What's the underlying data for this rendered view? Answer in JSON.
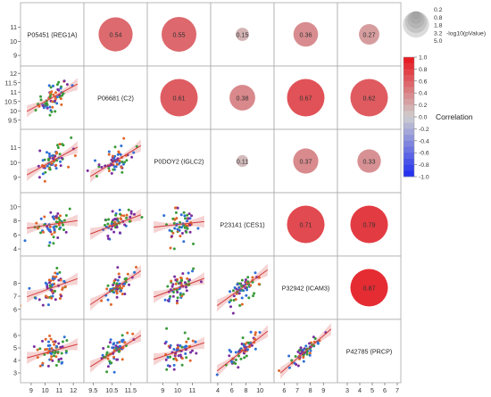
{
  "chart_data": {
    "type": "scatter-matrix",
    "variables": [
      {
        "label": "P05451 (REG1A)",
        "ticks": [
          9,
          10,
          11,
          12
        ],
        "range": [
          8.5,
          12.5
        ]
      },
      {
        "label": "P06681 (C2)",
        "ticks": [
          9.5,
          10.5,
          11.5
        ],
        "range": [
          9.2,
          12.2
        ]
      },
      {
        "label": "P0DOY2 (IGLC2)",
        "ticks": [
          9,
          10,
          11
        ],
        "range": [
          8.2,
          12
        ]
      },
      {
        "label": "P23141 (CES1)",
        "ticks": [
          4,
          6,
          8,
          10
        ],
        "range": [
          3.5,
          11.5
        ]
      },
      {
        "label": "P32942 (ICAM3)",
        "ticks": [
          6,
          7,
          8,
          9
        ],
        "range": [
          5.5,
          9.8
        ]
      },
      {
        "label": "P42785 (PRCP)",
        "ticks": [
          3,
          4,
          5,
          6,
          7
        ],
        "range": [
          2.5,
          7
        ]
      }
    ],
    "row_ticks": [
      {
        "ticks": [
          9,
          10,
          11
        ]
      },
      {
        "ticks": [
          9.5,
          10,
          10.5,
          11,
          11.5,
          12
        ]
      },
      {
        "ticks": [
          9,
          10,
          11
        ]
      },
      {
        "ticks": [
          4,
          6,
          8,
          10
        ]
      },
      {
        "ticks": [
          6,
          7,
          8
        ]
      },
      {
        "ticks": [
          3,
          4,
          5,
          6
        ]
      }
    ],
    "correlations": [
      {
        "row": 0,
        "col": 1,
        "value": "0.54",
        "r": 0.54,
        "neglog10p": 4.0
      },
      {
        "row": 0,
        "col": 2,
        "value": "0.55",
        "r": 0.55,
        "neglog10p": 4.2
      },
      {
        "row": 0,
        "col": 3,
        "value": "0.15",
        "r": 0.15,
        "neglog10p": 0.3
      },
      {
        "row": 0,
        "col": 4,
        "value": "0.36",
        "r": 0.36,
        "neglog10p": 1.8
      },
      {
        "row": 0,
        "col": 5,
        "value": "0.27",
        "r": 0.27,
        "neglog10p": 1.1
      },
      {
        "row": 1,
        "col": 2,
        "value": "0.61",
        "r": 0.61,
        "neglog10p": 5.0
      },
      {
        "row": 1,
        "col": 3,
        "value": "0.38",
        "r": 0.38,
        "neglog10p": 2.0
      },
      {
        "row": 1,
        "col": 4,
        "value": "0.67",
        "r": 0.67,
        "neglog10p": 5.0
      },
      {
        "row": 1,
        "col": 5,
        "value": "0.62",
        "r": 0.62,
        "neglog10p": 5.0
      },
      {
        "row": 2,
        "col": 3,
        "value": "0.11",
        "r": 0.11,
        "neglog10p": 0.2
      },
      {
        "row": 2,
        "col": 4,
        "value": "0.37",
        "r": 0.37,
        "neglog10p": 1.9
      },
      {
        "row": 2,
        "col": 5,
        "value": "0.33",
        "r": 0.33,
        "neglog10p": 1.6
      },
      {
        "row": 3,
        "col": 4,
        "value": "0.71",
        "r": 0.71,
        "neglog10p": 5.0
      },
      {
        "row": 3,
        "col": 5,
        "value": "0.79",
        "r": 0.79,
        "neglog10p": 5.0
      },
      {
        "row": 4,
        "col": 5,
        "value": "0.87",
        "r": 0.87,
        "neglog10p": 5.0
      }
    ],
    "size_legend": {
      "title": "-log10(pValue)",
      "levels": [
        "0.2",
        "0.8",
        "1.8",
        "3.2",
        "5.0"
      ]
    },
    "color_legend": {
      "title": "Correlation",
      "ticks": [
        "1.0",
        "0.8",
        "0.6",
        "0.4",
        "0.2",
        "0.0",
        "-0.2",
        "-0.4",
        "-0.6",
        "-0.8",
        "-1.0"
      ]
    },
    "point_groups": [
      {
        "color": "#2f6fd6"
      },
      {
        "color": "#3a9b3a"
      },
      {
        "color": "#7a2ea0"
      },
      {
        "color": "#e0662a"
      }
    ],
    "fit_line_color": "#d23c3c",
    "fit_band_color": "#f3c4c4"
  }
}
